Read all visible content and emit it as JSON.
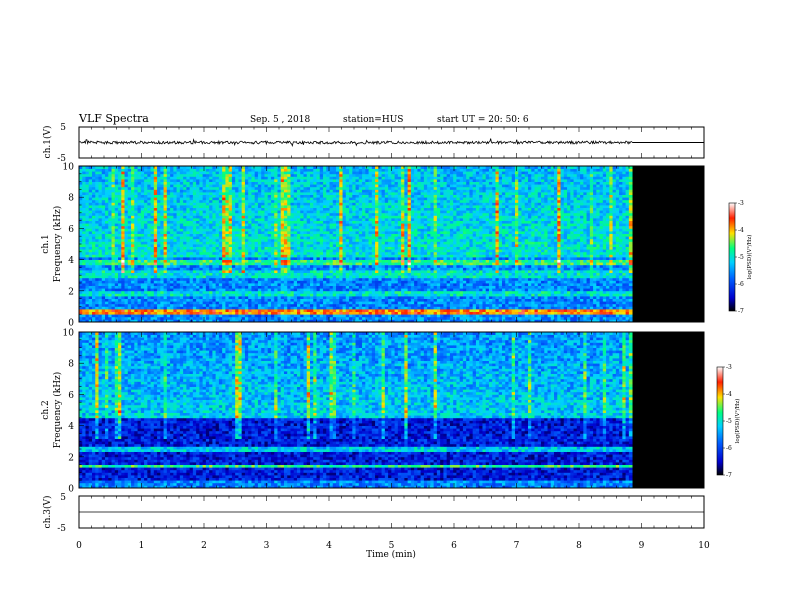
{
  "header": {
    "title": "VLF Spectra",
    "date": "Sep. 5 , 2018",
    "station": "station=HUS",
    "start": "start  UT  =   20: 50: 6"
  },
  "colorbar": {
    "label": "log(PSD)(V²/Hz)",
    "ticks": [
      -3,
      -4,
      -5,
      -6,
      -7
    ],
    "range": [
      -7,
      -3
    ],
    "colors": [
      "#000000",
      "#0000cc",
      "#0060ff",
      "#00d0ff",
      "#00ff80",
      "#ffe000",
      "#ff2000",
      "#ffffff"
    ]
  },
  "chart_data": [
    {
      "type": "line",
      "panel": "ch1",
      "ylabel": "ch.1(V)",
      "ylim": [
        -5,
        5
      ],
      "yticks": [
        -5,
        5
      ],
      "xlim": [
        0,
        10
      ],
      "trace_level": 0,
      "data_end_min": 8.85
    },
    {
      "type": "heatmap",
      "panel": "ch1-spectrogram",
      "ylabel_line1": "ch.1",
      "ylabel_line2": "Frequency  (kHz)",
      "ylim": [
        0,
        10
      ],
      "yticks": [
        0,
        2,
        4,
        6,
        8,
        10
      ],
      "xlim": [
        0,
        10
      ],
      "data_end_min": 8.85,
      "zlim": [
        -7,
        -3
      ]
    },
    {
      "type": "heatmap",
      "panel": "ch2-spectrogram",
      "ylabel_line1": "ch.2",
      "ylabel_line2": "Frequency  (kHz)",
      "ylim": [
        0,
        10
      ],
      "yticks": [
        0,
        2,
        4,
        6,
        8,
        10
      ],
      "xlim": [
        0,
        10
      ],
      "data_end_min": 8.85,
      "zlim": [
        -7,
        -3
      ]
    },
    {
      "type": "line",
      "panel": "ch3",
      "ylabel": "ch.3(V)",
      "ylim": [
        -5,
        5
      ],
      "yticks": [
        -5,
        5
      ],
      "xlim": [
        0,
        10
      ],
      "trace_level": 0
    }
  ],
  "xaxis": {
    "label": "Time  (min)",
    "ticks": [
      0,
      1,
      2,
      3,
      4,
      5,
      6,
      7,
      8,
      9,
      10
    ]
  }
}
